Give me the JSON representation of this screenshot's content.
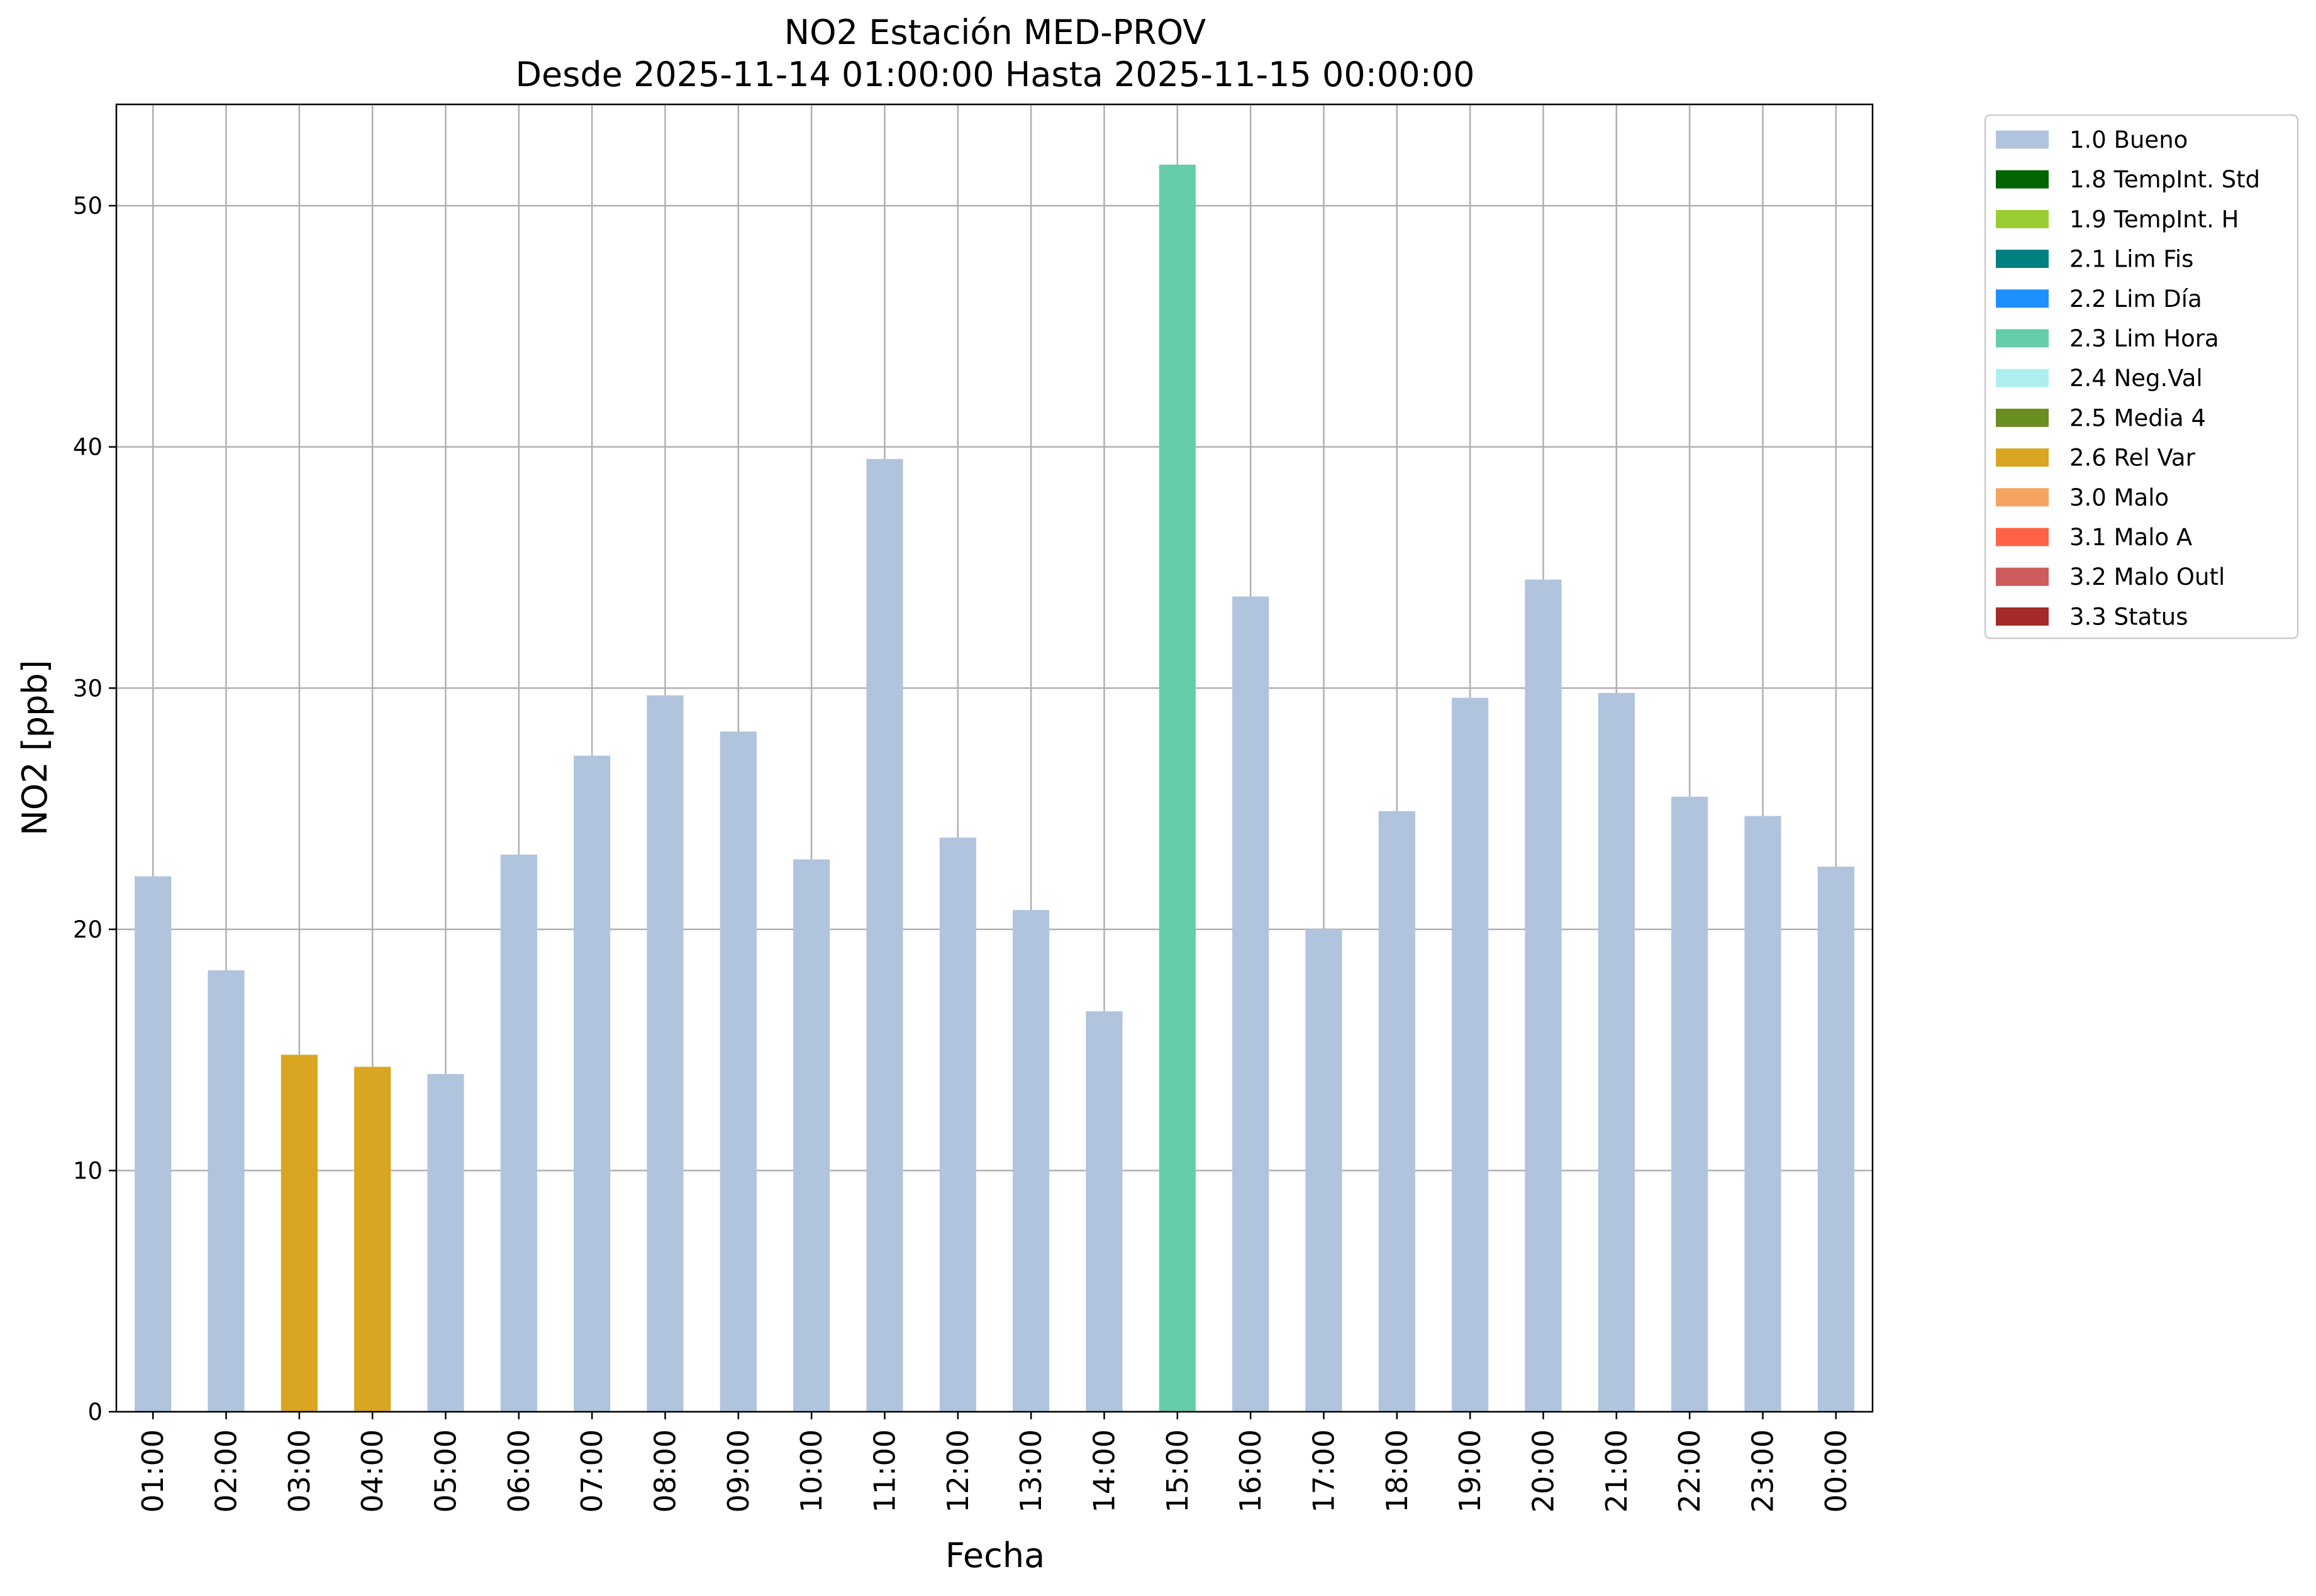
{
  "chart_data": {
    "type": "bar",
    "title": "NO2 Estación MED-PROV",
    "subtitle": "Desde 2025-11-14 01:00:00 Hasta 2025-11-15 00:00:00",
    "xlabel": "Fecha",
    "ylabel": "NO2 [ppb]",
    "ylim": [
      0,
      54.2
    ],
    "yticks": [
      0,
      10,
      20,
      30,
      40,
      50
    ],
    "grid": true,
    "legend_position": "outside-top-right",
    "categories": [
      "01:00",
      "02:00",
      "03:00",
      "04:00",
      "05:00",
      "06:00",
      "07:00",
      "08:00",
      "09:00",
      "10:00",
      "11:00",
      "12:00",
      "13:00",
      "14:00",
      "15:00",
      "16:00",
      "17:00",
      "18:00",
      "19:00",
      "20:00",
      "21:00",
      "22:00",
      "23:00",
      "00:00"
    ],
    "values": [
      22.2,
      18.3,
      14.8,
      14.3,
      14.0,
      23.1,
      27.2,
      29.7,
      28.2,
      22.9,
      39.5,
      23.8,
      20.8,
      16.6,
      51.7,
      33.8,
      20.0,
      24.9,
      29.6,
      34.5,
      29.8,
      25.5,
      24.7,
      22.6
    ],
    "flags": [
      "1.0 Bueno",
      "1.0 Bueno",
      "2.6 Rel Var",
      "2.6 Rel Var",
      "1.0 Bueno",
      "1.0 Bueno",
      "1.0 Bueno",
      "1.0 Bueno",
      "1.0 Bueno",
      "1.0 Bueno",
      "1.0 Bueno",
      "1.0 Bueno",
      "1.0 Bueno",
      "1.0 Bueno",
      "2.3 Lim Hora",
      "1.0 Bueno",
      "1.0 Bueno",
      "1.0 Bueno",
      "1.0 Bueno",
      "1.0 Bueno",
      "1.0 Bueno",
      "1.0 Bueno",
      "1.0 Bueno",
      "1.0 Bueno"
    ],
    "legend": [
      {
        "label": "1.0 Bueno",
        "color": "#b0c4de"
      },
      {
        "label": "1.8 TempInt. Std",
        "color": "#006400"
      },
      {
        "label": "1.9 TempInt. H",
        "color": "#9acd32"
      },
      {
        "label": "2.1 Lim Fis",
        "color": "#008080"
      },
      {
        "label": "2.2 Lim Día",
        "color": "#1e90ff"
      },
      {
        "label": "2.3 Lim Hora",
        "color": "#66cdaa"
      },
      {
        "label": "2.4 Neg.Val",
        "color": "#afeeee"
      },
      {
        "label": "2.5 Media 4",
        "color": "#6b8e23"
      },
      {
        "label": "2.6 Rel Var",
        "color": "#daa520"
      },
      {
        "label": "3.0 Malo",
        "color": "#f4a460"
      },
      {
        "label": "3.1 Malo A",
        "color": "#ff6347"
      },
      {
        "label": "3.2 Malo Outl",
        "color": "#cd5c5c"
      },
      {
        "label": "3.3 Status",
        "color": "#a52a2a"
      }
    ]
  }
}
